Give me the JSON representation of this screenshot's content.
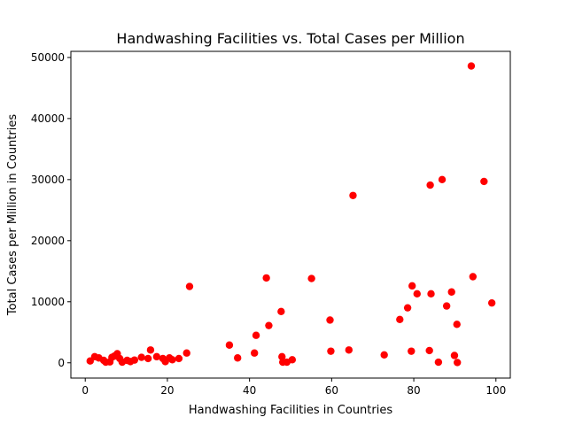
{
  "chart_data": {
    "type": "scatter",
    "title": "Handwashing Facilities vs. Total Cases per Million",
    "xlabel": "Handwashing Facilities in Countries",
    "ylabel": "Total Cases per Million in Countries",
    "xlim": [
      -3.5,
      103.5
    ],
    "ylim": [
      -2500,
      51000
    ],
    "xticks": [
      0,
      20,
      40,
      60,
      80,
      100
    ],
    "yticks": [
      0,
      10000,
      20000,
      30000,
      40000,
      50000
    ],
    "grid": false,
    "marker_color": "#ff0000",
    "points": [
      [
        1.2,
        300
      ],
      [
        2.3,
        1000
      ],
      [
        3.3,
        800
      ],
      [
        4.5,
        400
      ],
      [
        5.0,
        100
      ],
      [
        6.0,
        150
      ],
      [
        6.5,
        900
      ],
      [
        7.1,
        1100
      ],
      [
        7.8,
        1500
      ],
      [
        8.4,
        700
      ],
      [
        9.0,
        100
      ],
      [
        10.2,
        400
      ],
      [
        11.0,
        200
      ],
      [
        12.0,
        450
      ],
      [
        13.7,
        900
      ],
      [
        15.3,
        700
      ],
      [
        15.9,
        2100
      ],
      [
        17.4,
        1000
      ],
      [
        18.9,
        700
      ],
      [
        19.5,
        200
      ],
      [
        20.5,
        800
      ],
      [
        21.2,
        500
      ],
      [
        22.8,
        700
      ],
      [
        24.7,
        1600
      ],
      [
        25.4,
        12500
      ],
      [
        35.1,
        2900
      ],
      [
        37.1,
        800
      ],
      [
        41.2,
        1600
      ],
      [
        41.6,
        4500
      ],
      [
        44.1,
        13900
      ],
      [
        44.7,
        6100
      ],
      [
        47.7,
        8400
      ],
      [
        47.9,
        1000
      ],
      [
        48.1,
        100
      ],
      [
        49.1,
        100
      ],
      [
        50.4,
        500
      ],
      [
        55.1,
        13800
      ],
      [
        59.6,
        7000
      ],
      [
        59.8,
        1900
      ],
      [
        64.2,
        2100
      ],
      [
        65.2,
        27400
      ],
      [
        72.8,
        1300
      ],
      [
        76.6,
        7100
      ],
      [
        78.5,
        9000
      ],
      [
        79.4,
        1900
      ],
      [
        79.6,
        12600
      ],
      [
        80.8,
        11300
      ],
      [
        83.8,
        2000
      ],
      [
        84.0,
        29100
      ],
      [
        84.2,
        11300
      ],
      [
        86.0,
        100
      ],
      [
        86.9,
        30000
      ],
      [
        88.0,
        9300
      ],
      [
        89.2,
        11600
      ],
      [
        89.9,
        1200
      ],
      [
        90.5,
        6300
      ],
      [
        90.6,
        50
      ],
      [
        94.0,
        48600
      ],
      [
        94.4,
        14100
      ],
      [
        97.1,
        29700
      ],
      [
        99.0,
        9800
      ]
    ]
  }
}
